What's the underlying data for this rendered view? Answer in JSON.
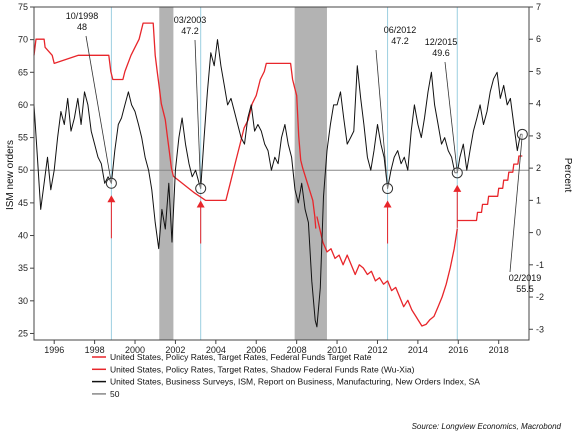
{
  "chart_data": {
    "type": "line",
    "ylabel_left": "ISM new orders",
    "ylabel_right": "Percent",
    "xlim": [
      1995,
      2019.5
    ],
    "ylim_left": [
      24,
      75
    ],
    "ylim_right": [
      -3.333,
      7.0
    ],
    "x_ticks": [
      1996,
      1998,
      2000,
      2002,
      2004,
      2006,
      2008,
      2010,
      2012,
      2014,
      2016,
      2018
    ],
    "x_tick_labels": [
      "1996",
      "1998",
      "2000",
      "2002",
      "2004",
      "2006",
      "2008",
      "2010",
      "2012",
      "2014",
      "2016",
      "2018"
    ],
    "y_ticks_left": [
      25,
      30,
      35,
      40,
      45,
      50,
      55,
      60,
      65,
      70,
      75
    ],
    "y_tick_labels_left": [
      "25",
      "30",
      "35",
      "40",
      "45",
      "50",
      "55",
      "60",
      "65",
      "70",
      "75"
    ],
    "y_ticks_right": [
      -3,
      -2,
      -1,
      0,
      1,
      2,
      3,
      4,
      5,
      6,
      7
    ],
    "y_tick_labels_right": [
      "-3",
      "-2",
      "-1",
      "0",
      "1",
      "2",
      "3",
      "4",
      "5",
      "6",
      "7"
    ],
    "recessions": [
      [
        2001.2,
        2001.9
      ],
      [
        2007.9,
        2009.5
      ]
    ],
    "vlines": [
      1998.83,
      2003.25,
      2012.5,
      2015.95
    ],
    "reference_level": 50,
    "series": [
      {
        "name": "United States, Policy Rates, Target Rates, Federal Funds Target Rate",
        "axis": "right",
        "color": "#e8262b",
        "x": [
          1995.0,
          1995.1,
          1995.5,
          1995.55,
          1995.9,
          1996.0,
          1997.2,
          1998.7,
          1998.8,
          1998.9,
          1999.4,
          1999.5,
          1999.8,
          2000.0,
          2000.2,
          2000.4,
          2000.9,
          2001.0,
          2001.1,
          2001.2,
          2001.3,
          2001.4,
          2001.5,
          2001.6,
          2001.7,
          2001.8,
          2001.9,
          2002.9,
          2003.5,
          2004.5,
          2004.7,
          2004.9,
          2005.0,
          2005.2,
          2005.4,
          2005.6,
          2005.8,
          2006.0,
          2006.2,
          2006.4,
          2006.5,
          2007.7,
          2007.8,
          2007.9,
          2008.0,
          2008.1,
          2008.2,
          2008.3,
          2008.8,
          2008.9,
          2008.95
        ],
        "y": [
          5.5,
          6.0,
          6.0,
          5.75,
          5.5,
          5.25,
          5.5,
          5.5,
          5.0,
          4.75,
          4.75,
          5.0,
          5.5,
          5.75,
          6.0,
          6.5,
          6.5,
          5.5,
          5.0,
          4.5,
          4.0,
          3.75,
          3.5,
          3.0,
          2.5,
          2.0,
          1.75,
          1.25,
          1.0,
          1.0,
          1.5,
          2.0,
          2.25,
          2.75,
          3.25,
          3.5,
          4.0,
          4.25,
          4.75,
          5.0,
          5.25,
          5.25,
          4.75,
          4.5,
          4.25,
          3.0,
          2.25,
          2.0,
          1.0,
          0.5,
          0.125
        ]
      },
      {
        "name": "United States, Policy Rates, Target Rates, Shadow Federal Funds Rate (Wu-Xia)",
        "axis": "right",
        "color": "#e8262b",
        "x": [
          2009.0,
          2009.3,
          2009.5,
          2009.7,
          2009.9,
          2010.1,
          2010.3,
          2010.5,
          2010.7,
          2010.9,
          2011.1,
          2011.3,
          2011.5,
          2011.7,
          2011.9,
          2012.1,
          2012.3,
          2012.5,
          2012.7,
          2012.9,
          2013.1,
          2013.3,
          2013.5,
          2013.7,
          2013.9,
          2014.0,
          2014.2,
          2014.4,
          2014.6,
          2014.8,
          2015.0,
          2015.2,
          2015.4,
          2015.6,
          2015.8,
          2015.95
        ],
        "y": [
          0.5,
          -0.3,
          -0.6,
          -0.5,
          -0.8,
          -0.7,
          -1.0,
          -0.7,
          -1.0,
          -1.3,
          -1.0,
          -1.1,
          -1.3,
          -1.2,
          -1.5,
          -1.4,
          -1.6,
          -1.5,
          -1.8,
          -1.7,
          -2.0,
          -2.3,
          -2.1,
          -2.4,
          -2.6,
          -2.7,
          -2.9,
          -2.85,
          -2.7,
          -2.6,
          -2.3,
          -2.0,
          -1.6,
          -1.1,
          -0.5,
          0.125
        ]
      },
      {
        "name": "",
        "axis": "right",
        "color": "#e8262b",
        "x": [
          2015.95,
          2016.9,
          2016.95,
          2017.15,
          2017.2,
          2017.45,
          2017.5,
          2017.95,
          2018.0,
          2018.2,
          2018.25,
          2018.45,
          2018.5,
          2018.7,
          2018.75,
          2018.95,
          2019.0,
          2019.17
        ],
        "y": [
          0.375,
          0.375,
          0.625,
          0.625,
          0.875,
          0.875,
          1.125,
          1.125,
          1.375,
          1.375,
          1.625,
          1.625,
          1.875,
          1.875,
          2.125,
          2.125,
          2.375,
          2.375
        ]
      },
      {
        "name": "United States, Business Surveys, ISM, Report on Business, Manufacturing, New Orders Index, SA",
        "axis": "left",
        "color": "#111111",
        "x": [
          1995.0,
          1995.17,
          1995.33,
          1995.5,
          1995.67,
          1995.83,
          1996.0,
          1996.17,
          1996.33,
          1996.5,
          1996.67,
          1996.83,
          1997.0,
          1997.17,
          1997.33,
          1997.5,
          1997.67,
          1997.83,
          1998.0,
          1998.17,
          1998.33,
          1998.5,
          1998.67,
          1998.83,
          1999.0,
          1999.17,
          1999.33,
          1999.5,
          1999.67,
          1999.83,
          2000.0,
          2000.17,
          2000.33,
          2000.5,
          2000.67,
          2000.83,
          2001.0,
          2001.17,
          2001.33,
          2001.5,
          2001.67,
          2001.83,
          2002.0,
          2002.17,
          2002.33,
          2002.5,
          2002.67,
          2002.83,
          2003.0,
          2003.17,
          2003.25,
          2003.42,
          2003.58,
          2003.75,
          2003.92,
          2004.08,
          2004.25,
          2004.42,
          2004.58,
          2004.75,
          2004.92,
          2005.08,
          2005.25,
          2005.42,
          2005.58,
          2005.75,
          2005.92,
          2006.08,
          2006.25,
          2006.42,
          2006.58,
          2006.75,
          2006.92,
          2007.08,
          2007.25,
          2007.42,
          2007.58,
          2007.75,
          2007.92,
          2008.08,
          2008.25,
          2008.42,
          2008.58,
          2008.75,
          2008.92,
          2009.0,
          2009.17,
          2009.33,
          2009.5,
          2009.67,
          2009.83,
          2010.0,
          2010.17,
          2010.33,
          2010.5,
          2010.67,
          2010.83,
          2011.0,
          2011.17,
          2011.33,
          2011.5,
          2011.67,
          2011.83,
          2012.0,
          2012.17,
          2012.33,
          2012.5,
          2012.67,
          2012.83,
          2013.0,
          2013.17,
          2013.33,
          2013.5,
          2013.67,
          2013.83,
          2014.0,
          2014.17,
          2014.33,
          2014.5,
          2014.67,
          2014.83,
          2015.0,
          2015.17,
          2015.33,
          2015.5,
          2015.67,
          2015.83,
          2015.95,
          2016.08,
          2016.25,
          2016.42,
          2016.58,
          2016.75,
          2016.92,
          2017.08,
          2017.25,
          2017.42,
          2017.58,
          2017.75,
          2017.92,
          2018.08,
          2018.25,
          2018.42,
          2018.58,
          2018.75,
          2018.92,
          2019.08,
          2019.17
        ],
        "y": [
          60,
          52,
          44,
          48,
          52,
          47,
          50,
          55,
          59,
          57,
          61,
          56,
          58,
          61,
          57,
          62,
          60,
          56,
          54,
          52,
          51,
          48,
          49,
          48,
          53,
          57,
          58,
          60,
          62,
          60,
          59,
          57,
          55,
          52,
          50,
          47,
          42,
          38,
          44,
          41,
          48,
          39,
          50,
          55,
          58,
          54,
          51,
          49,
          50,
          48,
          47.2,
          55,
          62,
          68,
          66,
          70,
          66,
          63,
          60,
          61,
          59,
          57,
          55,
          54,
          58,
          60,
          56,
          57,
          56,
          54,
          53,
          50,
          52,
          51,
          55,
          57,
          54,
          52,
          47,
          45,
          48,
          44,
          42,
          33,
          27,
          26,
          32,
          46,
          53,
          57,
          60,
          60,
          62,
          58,
          54,
          55,
          56,
          66,
          61,
          57,
          52,
          50,
          53,
          57,
          54,
          52,
          47.2,
          50,
          52,
          53,
          51,
          52,
          50,
          56,
          60,
          57,
          55,
          58,
          62,
          65,
          60,
          57,
          54,
          55,
          53,
          52,
          49.6,
          49.6,
          52,
          54,
          50,
          53,
          56,
          58,
          60,
          57,
          59,
          62,
          64,
          65,
          61,
          63,
          60,
          61,
          57,
          53,
          55.5,
          55.5
        ]
      }
    ],
    "legend": [
      {
        "label": "United States, Policy Rates, Target Rates, Federal Funds Target Rate",
        "color": "#e8262b"
      },
      {
        "label": "United States, Policy Rates, Target Rates, Shadow Federal Funds Rate (Wu-Xia)",
        "color": "#e8262b"
      },
      {
        "label": "United States, Business Surveys, ISM, Report on Business, Manufacturing, New Orders Index, SA",
        "color": "#111111"
      },
      {
        "label": "50",
        "color": "#888888"
      }
    ],
    "annotations": [
      {
        "date": "10/1998",
        "value": "48",
        "x": 1998.83,
        "y": 48
      },
      {
        "date": "03/2003",
        "value": "47.2",
        "x": 2003.25,
        "y": 47.2
      },
      {
        "date": "06/2012",
        "value": "47.2",
        "x": 2012.5,
        "y": 47.2
      },
      {
        "date": "12/2015",
        "value": "49.6",
        "x": 2015.95,
        "y": 49.6
      },
      {
        "date": "02/2019",
        "value": "55.5",
        "x": 2019.17,
        "y": 55.5
      }
    ],
    "source": "Source: Longview Economics, Macrobond"
  }
}
